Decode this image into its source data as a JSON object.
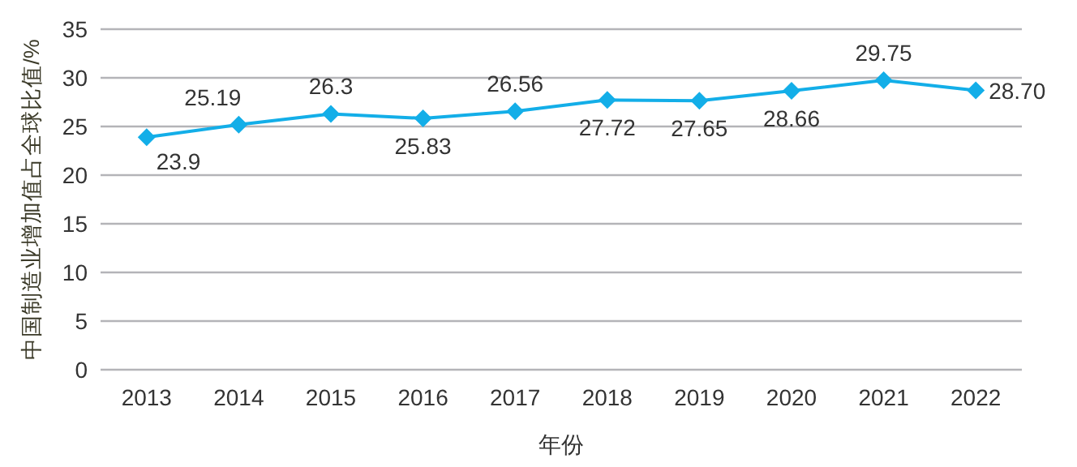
{
  "chart_data": {
    "type": "line",
    "xlabel": "年份",
    "ylabel": "中国制造业增加值占全球比值/%",
    "categories": [
      "2013",
      "2014",
      "2015",
      "2016",
      "2017",
      "2018",
      "2019",
      "2020",
      "2021",
      "2022"
    ],
    "series": [
      {
        "color": "#13aee8",
        "values": [
          23.9,
          25.19,
          26.3,
          25.83,
          26.56,
          27.72,
          27.65,
          28.66,
          29.75,
          28.7
        ],
        "value_labels": [
          "23.9",
          "25.19",
          "26.3",
          "25.83",
          "26.56",
          "27.72",
          "27.65",
          "28.66",
          "29.75",
          "28.70"
        ]
      }
    ],
    "ylim": [
      0,
      35
    ],
    "yticks": [
      0,
      5,
      10,
      15,
      20,
      25,
      30,
      35
    ],
    "grid": "y",
    "marker": "diamond",
    "line_style": "solid"
  }
}
